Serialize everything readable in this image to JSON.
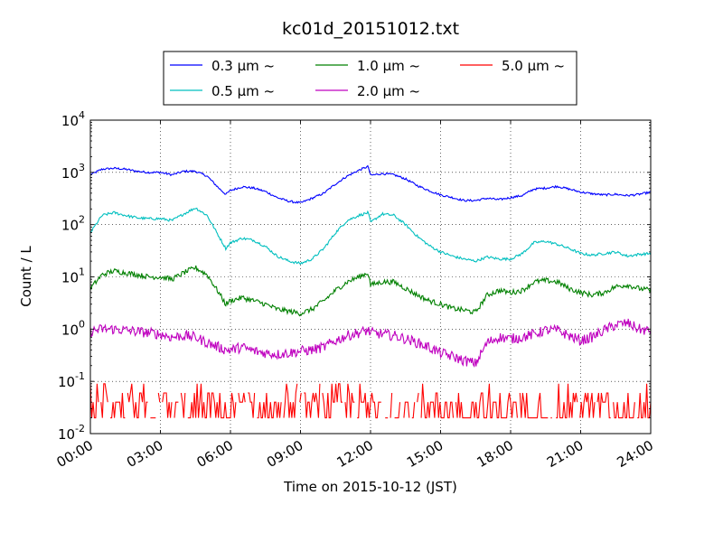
{
  "chart_data": {
    "type": "line",
    "title": "kc01d_20151012.txt",
    "xlabel": "Time on 2015-10-12 (JST)",
    "ylabel": "Count / L",
    "x_ticks": [
      "00:00",
      "03:00",
      "06:00",
      "09:00",
      "12:00",
      "15:00",
      "18:00",
      "21:00",
      "24:00"
    ],
    "x_range_hours": [
      0,
      24
    ],
    "y_scale": "log",
    "ylim": [
      0.01,
      10000
    ],
    "y_ticks": [
      {
        "base": "10",
        "exp": "-2"
      },
      {
        "base": "10",
        "exp": "-1"
      },
      {
        "base": "10",
        "exp": "0"
      },
      {
        "base": "10",
        "exp": "1"
      },
      {
        "base": "10",
        "exp": "2"
      },
      {
        "base": "10",
        "exp": "3"
      },
      {
        "base": "10",
        "exp": "4"
      }
    ],
    "grid": true,
    "legend_position": "top",
    "series": [
      {
        "name": "0.3 μm ~",
        "color": "#0000ff",
        "x": [
          0,
          0.5,
          1,
          1.5,
          2,
          2.5,
          3,
          3.5,
          4,
          4.5,
          5,
          5.5,
          5.8,
          6,
          6.5,
          7,
          7.5,
          8,
          8.5,
          9,
          9.5,
          10,
          10.5,
          11,
          11.5,
          11.9,
          12,
          12.5,
          13,
          13.5,
          14,
          14.5,
          15,
          15.5,
          16,
          16.5,
          17,
          17.5,
          18,
          18.5,
          19,
          19.5,
          20,
          20.5,
          21,
          21.5,
          22,
          22.5,
          23,
          23.5,
          24
        ],
        "values": [
          900,
          1150,
          1200,
          1150,
          1050,
          1000,
          1000,
          900,
          1050,
          1050,
          850,
          500,
          380,
          450,
          530,
          500,
          430,
          330,
          280,
          260,
          320,
          400,
          600,
          850,
          1100,
          1300,
          880,
          950,
          900,
          750,
          560,
          450,
          370,
          330,
          290,
          290,
          320,
          300,
          330,
          360,
          480,
          500,
          540,
          480,
          420,
          390,
          370,
          380,
          360,
          380,
          420
        ]
      },
      {
        "name": "0.5 μm ~",
        "color": "#00bfbf",
        "x": [
          0,
          0.5,
          1,
          1.5,
          2,
          2.5,
          3,
          3.5,
          4,
          4.5,
          5,
          5.5,
          5.8,
          6,
          6.5,
          7,
          7.5,
          8,
          8.5,
          9,
          9.5,
          10,
          10.5,
          11,
          11.5,
          11.9,
          12,
          12.5,
          13,
          13.5,
          14,
          14.5,
          15,
          15.5,
          16,
          16.5,
          17,
          17.5,
          18,
          18.5,
          19,
          19.5,
          20,
          20.5,
          21,
          21.5,
          22,
          22.5,
          23,
          23.5,
          24
        ],
        "values": [
          70,
          150,
          170,
          150,
          135,
          130,
          130,
          120,
          160,
          210,
          150,
          60,
          35,
          45,
          55,
          50,
          38,
          25,
          20,
          18,
          22,
          35,
          70,
          120,
          150,
          170,
          110,
          160,
          150,
          100,
          60,
          40,
          30,
          25,
          22,
          20,
          24,
          22,
          22,
          28,
          45,
          48,
          42,
          35,
          28,
          26,
          28,
          30,
          25,
          27,
          28
        ]
      },
      {
        "name": "1.0 μm ~",
        "color": "#008000",
        "x": [
          0,
          0.5,
          1,
          1.5,
          2,
          2.5,
          3,
          3.5,
          4,
          4.5,
          5,
          5.5,
          5.8,
          6,
          6.5,
          7,
          7.5,
          8,
          8.5,
          9,
          9.5,
          10,
          10.5,
          11,
          11.5,
          11.9,
          12,
          12.5,
          13,
          13.5,
          14,
          14.5,
          15,
          15.5,
          16,
          16.5,
          17,
          17.5,
          18,
          18.5,
          19,
          19.5,
          20,
          20.5,
          21,
          21.5,
          22,
          22.5,
          23,
          23.5,
          24
        ],
        "values": [
          6,
          11,
          13,
          12,
          11,
          10,
          10,
          9,
          12,
          15,
          11,
          5,
          3,
          3.5,
          4,
          3.5,
          3,
          2.4,
          2.2,
          2,
          2.4,
          3.5,
          5.5,
          8,
          10,
          12,
          7,
          8,
          8,
          6,
          4.5,
          3.5,
          3,
          2.5,
          2.3,
          2.1,
          4.5,
          5.5,
          5,
          5.5,
          8,
          8.5,
          8,
          6,
          5,
          4.5,
          5,
          6.5,
          7,
          6,
          5.5
        ]
      },
      {
        "name": "2.0 μm ~",
        "color": "#bf00bf",
        "x": [
          0,
          0.5,
          1,
          1.5,
          2,
          2.5,
          3,
          3.5,
          4,
          4.5,
          5,
          5.5,
          5.8,
          6,
          6.5,
          7,
          7.5,
          8,
          8.5,
          9,
          9.5,
          10,
          10.5,
          11,
          11.5,
          11.9,
          12,
          12.5,
          13,
          13.5,
          14,
          14.5,
          15,
          15.5,
          16,
          16.5,
          17,
          17.5,
          18,
          18.5,
          19,
          19.5,
          20,
          20.5,
          21,
          21.5,
          22,
          22.5,
          23,
          23.5,
          24
        ],
        "values": [
          0.9,
          1.0,
          1.0,
          0.95,
          0.9,
          0.85,
          0.8,
          0.7,
          0.75,
          0.7,
          0.55,
          0.45,
          0.4,
          0.4,
          0.45,
          0.38,
          0.35,
          0.33,
          0.35,
          0.38,
          0.4,
          0.45,
          0.6,
          0.75,
          0.85,
          0.95,
          0.85,
          0.8,
          0.75,
          0.65,
          0.55,
          0.45,
          0.35,
          0.3,
          0.25,
          0.22,
          0.55,
          0.7,
          0.65,
          0.7,
          0.8,
          0.95,
          0.95,
          0.75,
          0.6,
          0.7,
          0.95,
          1.2,
          1.3,
          1.0,
          0.9
        ]
      },
      {
        "name": "5.0 μm ~",
        "color": "#ff0000",
        "x": [
          0,
          24
        ],
        "values": [
          0.03,
          0.03
        ]
      }
    ]
  }
}
